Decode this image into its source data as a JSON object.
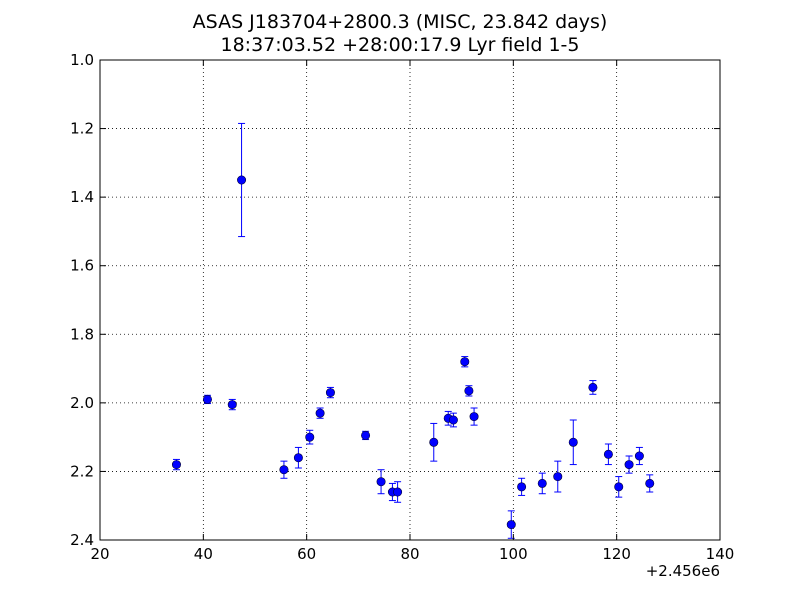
{
  "chart_data": {
    "type": "scatter",
    "title": "ASAS J183704+2800.3 (MISC, 23.842 days)",
    "subtitle": "18:37:03.52 +28:00:17.9 Lyr field 1-5",
    "xlabel": "",
    "ylabel": "",
    "x_offset_label": "+2.456e6",
    "xlim": [
      20,
      140
    ],
    "ylim": [
      2.4,
      1.0
    ],
    "y_inverted": true,
    "x_ticks": [
      "20",
      "40",
      "60",
      "80",
      "100",
      "120",
      "140"
    ],
    "y_ticks": [
      "1.0",
      "1.2",
      "1.4",
      "1.6",
      "1.8",
      "2.0",
      "2.2",
      "2.4"
    ],
    "grid": true,
    "marker_color": "#0000ff",
    "points": [
      {
        "x": 34.8,
        "y": 2.18,
        "err": 0.015
      },
      {
        "x": 40.8,
        "y": 1.99,
        "err": 0.012
      },
      {
        "x": 45.6,
        "y": 2.005,
        "err": 0.015
      },
      {
        "x": 47.4,
        "y": 1.35,
        "err": 0.165
      },
      {
        "x": 55.6,
        "y": 2.195,
        "err": 0.025
      },
      {
        "x": 58.4,
        "y": 2.16,
        "err": 0.03
      },
      {
        "x": 60.6,
        "y": 2.1,
        "err": 0.02
      },
      {
        "x": 62.6,
        "y": 2.03,
        "err": 0.015
      },
      {
        "x": 64.6,
        "y": 1.97,
        "err": 0.015
      },
      {
        "x": 71.4,
        "y": 2.095,
        "err": 0.012
      },
      {
        "x": 74.4,
        "y": 2.23,
        "err": 0.035
      },
      {
        "x": 76.6,
        "y": 2.26,
        "err": 0.025
      },
      {
        "x": 77.6,
        "y": 2.26,
        "err": 0.03
      },
      {
        "x": 84.6,
        "y": 2.115,
        "err": 0.055
      },
      {
        "x": 87.4,
        "y": 2.045,
        "err": 0.02
      },
      {
        "x": 88.4,
        "y": 2.05,
        "err": 0.02
      },
      {
        "x": 90.6,
        "y": 1.88,
        "err": 0.015
      },
      {
        "x": 91.4,
        "y": 1.965,
        "err": 0.015
      },
      {
        "x": 92.4,
        "y": 2.04,
        "err": 0.025
      },
      {
        "x": 99.6,
        "y": 2.355,
        "err": 0.04
      },
      {
        "x": 101.6,
        "y": 2.245,
        "err": 0.025
      },
      {
        "x": 105.6,
        "y": 2.235,
        "err": 0.03
      },
      {
        "x": 108.6,
        "y": 2.215,
        "err": 0.045
      },
      {
        "x": 111.6,
        "y": 2.115,
        "err": 0.065
      },
      {
        "x": 115.4,
        "y": 1.955,
        "err": 0.02
      },
      {
        "x": 118.4,
        "y": 2.15,
        "err": 0.03
      },
      {
        "x": 120.4,
        "y": 2.245,
        "err": 0.03
      },
      {
        "x": 122.4,
        "y": 2.18,
        "err": 0.025
      },
      {
        "x": 124.4,
        "y": 2.155,
        "err": 0.025
      },
      {
        "x": 126.4,
        "y": 2.235,
        "err": 0.025
      }
    ]
  }
}
